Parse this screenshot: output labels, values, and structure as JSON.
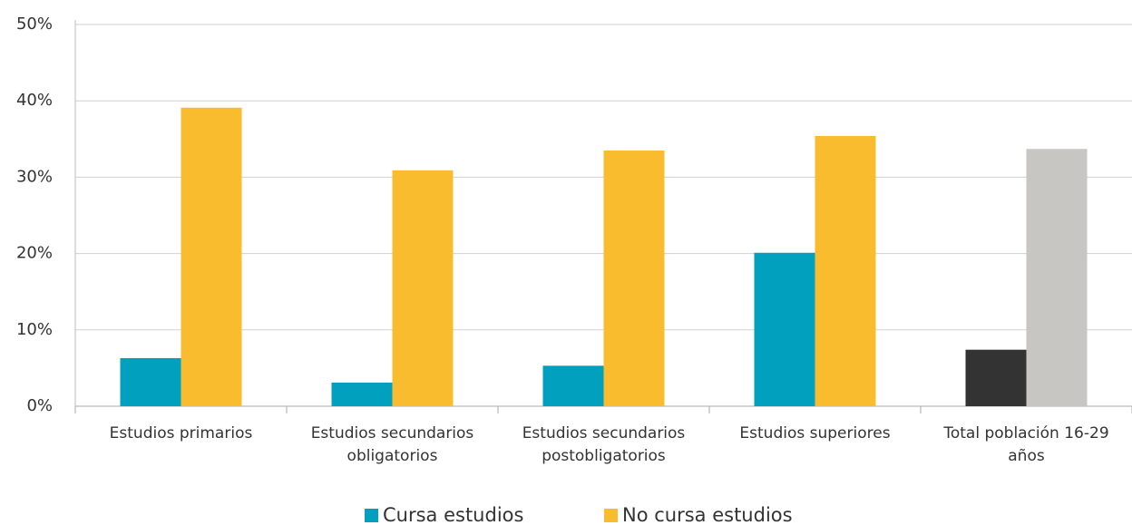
{
  "chart_data": {
    "type": "bar",
    "categories": [
      "Estudios primarios",
      "Estudios secundarios obligatorios",
      "Estudios secundarios postobligatorios",
      "Estudios superiores",
      "Total población 16-29 años"
    ],
    "series": [
      {
        "name": "Cursa estudios",
        "color": "#00a0be",
        "point_colors": [
          "#00a0be",
          "#00a0be",
          "#00a0be",
          "#00a0be",
          "#333333"
        ],
        "values": [
          6.3,
          3.1,
          5.3,
          20.1,
          7.4
        ]
      },
      {
        "name": "No cursa estudios",
        "color": "#f9bc2e",
        "point_colors": [
          "#f9bc2e",
          "#f9bc2e",
          "#f9bc2e",
          "#f9bc2e",
          "#c8c6c3"
        ],
        "values": [
          39.1,
          30.9,
          33.5,
          35.4,
          33.7
        ]
      }
    ],
    "ylim": [
      0,
      50
    ],
    "yticks": [
      {
        "value": 0,
        "label": "0%"
      },
      {
        "value": 10,
        "label": "10%"
      },
      {
        "value": 20,
        "label": "20%"
      },
      {
        "value": 30,
        "label": "30%"
      },
      {
        "value": 40,
        "label": "40%"
      },
      {
        "value": 50,
        "label": "50%"
      }
    ],
    "grid": true,
    "legend": "bottom"
  }
}
